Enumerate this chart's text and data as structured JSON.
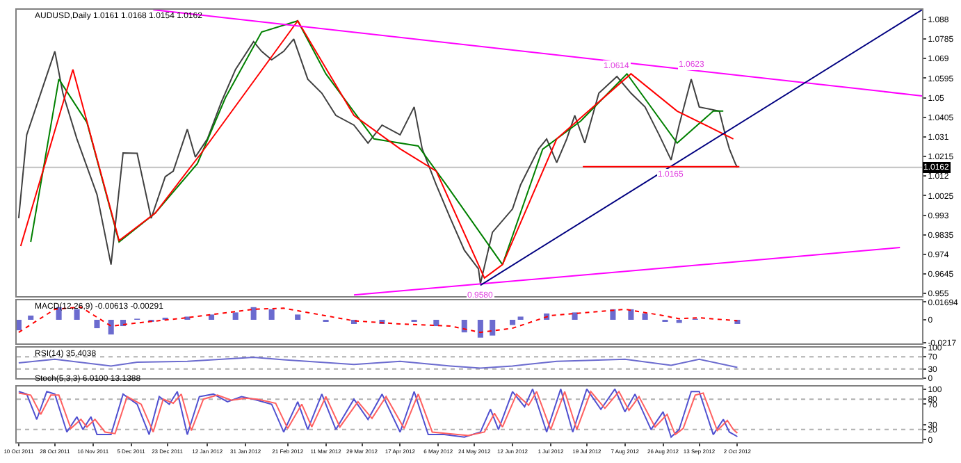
{
  "chart_data": [
    {
      "type": "line",
      "title": "AUDUSD,Daily 1.0161 1.0168 1.0154 1.0162",
      "tick_labels": "y",
      "xlim": [
        "2011-10-09",
        "2013-01-02"
      ],
      "ylim": [
        0.9537,
        1.0927
      ],
      "yticks": [
        0.955,
        0.9645,
        0.974,
        0.9835,
        0.993,
        1.0025,
        1.012,
        1.0215,
        1.031,
        1.0405,
        1.05,
        1.0595,
        1.069,
        1.0785,
        1.088
      ],
      "series": [
        {
          "color": "#404040",
          "x": [
            "2011-10-10",
            "2011-10-14",
            "2011-10-28",
            "2011-11-01",
            "2011-11-08",
            "2011-11-18",
            "2011-11-25",
            "2011-12-01",
            "2011-12-08",
            "2011-12-15",
            "2011-12-22",
            "2011-12-26",
            "2012-01-02",
            "2012-01-06",
            "2012-01-12",
            "2012-01-19",
            "2012-01-26",
            "2012-02-04",
            "2012-02-08",
            "2012-02-13",
            "2012-02-19",
            "2012-02-24",
            "2012-03-02",
            "2012-03-09",
            "2012-03-16",
            "2012-03-25",
            "2012-04-01",
            "2012-04-08",
            "2012-04-17",
            "2012-04-24",
            "2012-04-28",
            "2012-05-05",
            "2012-05-12",
            "2012-05-19",
            "2012-05-26",
            "2012-05-27",
            "2012-06-02",
            "2012-06-12",
            "2012-06-16",
            "2012-06-25",
            "2012-06-29",
            "2012-07-04",
            "2012-07-09",
            "2012-07-13",
            "2012-07-18",
            "2012-07-25",
            "2012-08-03",
            "2012-08-10",
            "2012-08-17",
            "2012-08-24",
            "2012-08-30",
            "2012-09-03",
            "2012-09-09",
            "2012-09-13",
            "2012-09-23",
            "2012-09-26",
            "2012-09-28",
            "2012-10-01",
            "2012-10-02"
          ],
          "values": [
            0.9915,
            1.032,
            1.0725,
            1.0522,
            1.03,
            1.003,
            0.969,
            1.0232,
            1.023,
            0.9915,
            1.0117,
            1.0144,
            1.0347,
            1.0212,
            1.03,
            1.048,
            1.0637,
            1.0772,
            1.0725,
            1.0684,
            1.0725,
            1.0785,
            1.059,
            1.0522,
            1.0414,
            1.0367,
            1.028,
            1.0367,
            1.032,
            1.0455,
            1.0252,
            1.0077,
            0.9915,
            0.976,
            0.967,
            0.9598,
            0.9847,
            0.996,
            1.0077,
            1.0252,
            1.03,
            1.0185,
            1.03,
            1.0414,
            1.028,
            1.0522,
            1.0603,
            1.0522,
            1.0455,
            1.032,
            1.0198,
            1.0367,
            1.059,
            1.0455,
            1.0435,
            1.032,
            1.0252,
            1.018,
            1.0162
          ]
        },
        {
          "color": "#008000",
          "x": [
            "2011-10-16",
            "2011-10-30",
            "2011-11-13",
            "2011-11-29",
            "2011-12-17",
            "2012-01-07",
            "2012-01-21",
            "2012-02-08",
            "2012-02-26",
            "2012-03-11",
            "2012-04-04",
            "2012-04-26",
            "2012-05-10",
            "2012-06-07",
            "2012-06-27",
            "2012-07-16",
            "2012-08-08",
            "2012-09-02",
            "2012-09-20",
            "2012-09-25"
          ],
          "values": [
            0.98,
            1.059,
            1.038,
            0.98,
            0.994,
            1.018,
            1.05,
            1.0819,
            1.0873,
            1.0616,
            1.03,
            1.0266,
            1.0077,
            0.969,
            1.025,
            1.0387,
            1.0616,
            1.028,
            1.0435,
            1.0435
          ]
        },
        {
          "color": "#ff0000",
          "x": [
            "2011-10-11",
            "2011-11-06",
            "2011-11-29",
            "2011-12-17",
            "2012-01-09",
            "2012-02-26",
            "2012-03-25",
            "2012-04-17",
            "2012-05-05",
            "2012-05-29",
            "2012-06-07",
            "2012-07-04",
            "2012-08-10",
            "2012-09-02",
            "2012-09-30"
          ],
          "values": [
            0.978,
            1.0637,
            0.9807,
            0.994,
            1.0232,
            1.0873,
            1.0414,
            1.0252,
            1.0144,
            0.9625,
            0.969,
            1.03,
            1.0616,
            1.0435,
            1.03
          ]
        },
        {
          "color": "#ff00ff",
          "x": [
            "2011-12-16",
            "2013-01-02"
          ],
          "values": [
            1.0927,
            1.0509
          ]
        },
        {
          "color": "#ff00ff",
          "x": [
            "2012-03-25",
            "2012-12-22"
          ],
          "values": [
            0.9543,
            0.9773
          ]
        },
        {
          "color": "#000080",
          "x": [
            "2012-05-27",
            "2013-01-02"
          ],
          "values": [
            0.959,
            1.0927
          ]
        },
        {
          "color": "#ff0000",
          "x": [
            "2012-07-17",
            "2012-10-03"
          ],
          "values": [
            1.0165,
            1.0165
          ]
        }
      ],
      "ref_lines": [
        {
          "axis": "y",
          "value": 1.0162,
          "label": "1.0162",
          "color": "#c0c0c0"
        }
      ],
      "annotations": [
        {
          "text": "1.0614",
          "x": "2012-08-03",
          "y": 1.0614
        },
        {
          "text": "1.0623",
          "x": "2012-09-09",
          "y": 1.0623
        },
        {
          "text": "1.0165",
          "x": "2012-08-30",
          "y": 1.0165
        },
        {
          "text": "0.9580",
          "x": "2012-05-27",
          "y": 0.958
        }
      ]
    },
    {
      "type": "bar",
      "title": "MACD(12,26,9) -0.00613 -0.00291",
      "tick_labels": "y",
      "xlim": [
        "2011-10-09",
        "2013-01-02"
      ],
      "ylim": [
        -0.0225,
        0.0185
      ],
      "yticks": [
        -0.0217,
        0,
        0.01694
      ],
      "series": [
        {
          "color": "#6b6bcf",
          "x": [
            "2011-10-10",
            "2011-10-16",
            "2011-10-30",
            "2011-11-08",
            "2011-11-18",
            "2011-11-25",
            "2011-12-01",
            "2011-12-08",
            "2011-12-15",
            "2011-12-22",
            "2012-01-02",
            "2012-01-14",
            "2012-01-26",
            "2012-02-04",
            "2012-02-13",
            "2012-02-26",
            "2012-03-11",
            "2012-03-25",
            "2012-04-08",
            "2012-04-24",
            "2012-05-05",
            "2012-05-19",
            "2012-05-27",
            "2012-06-02",
            "2012-06-12",
            "2012-06-16",
            "2012-06-29",
            "2012-07-13",
            "2012-08-01",
            "2012-08-10",
            "2012-08-17",
            "2012-08-27",
            "2012-09-03",
            "2012-09-11",
            "2012-09-23",
            "2012-10-02"
          ],
          "values": [
            -0.01,
            0.004,
            0.012,
            0.01,
            -0.008,
            -0.014,
            -0.006,
            0.001,
            -0.002,
            0.002,
            0.003,
            0.005,
            0.007,
            0.012,
            0.01,
            0.005,
            -0.002,
            -0.004,
            -0.004,
            -0.002,
            -0.006,
            -0.012,
            -0.017,
            -0.015,
            -0.005,
            0.003,
            0.006,
            0.007,
            0.01,
            0.01,
            0.006,
            -0.002,
            -0.003,
            0.001,
            0,
            -0.004
          ]
        },
        {
          "type": "line",
          "line_style": "dotted",
          "color": "#ff0000",
          "x": [
            "2011-10-10",
            "2011-10-28",
            "2011-11-10",
            "2011-11-25",
            "2011-12-08",
            "2012-01-02",
            "2012-02-04",
            "2012-02-19",
            "2012-03-25",
            "2012-04-17",
            "2012-05-12",
            "2012-05-27",
            "2012-06-12",
            "2012-07-01",
            "2012-08-07",
            "2012-08-26",
            "2012-09-03",
            "2012-09-13",
            "2012-10-02"
          ],
          "values": [
            -0.012,
            0.01,
            0.012,
            -0.006,
            -0.003,
            0.002,
            0.01,
            0.011,
            -0.001,
            -0.004,
            -0.006,
            -0.012,
            -0.008,
            0.004,
            0.01,
            0.004,
            0.001,
            0.002,
            -0.001
          ]
        }
      ]
    },
    {
      "type": "line",
      "title": "RSI(14) 35.4038",
      "tick_labels": "y",
      "xlim": [
        "2011-10-09",
        "2013-01-02"
      ],
      "ylim": [
        0,
        100
      ],
      "yticks": [
        0,
        30,
        70,
        100
      ],
      "ref_lines": [
        {
          "axis": "y",
          "value": 70,
          "color": "#b0b0b0",
          "line_style": "dotted"
        },
        {
          "axis": "y",
          "value": 30,
          "color": "#b0b0b0",
          "line_style": "dotted"
        }
      ],
      "series": [
        {
          "color": "#6b6bcf",
          "x": [
            "2011-10-10",
            "2011-10-28",
            "2011-11-25",
            "2011-12-08",
            "2012-01-02",
            "2012-02-04",
            "2012-02-19",
            "2012-03-25",
            "2012-04-17",
            "2012-05-12",
            "2012-05-27",
            "2012-06-12",
            "2012-07-04",
            "2012-07-19",
            "2012-08-07",
            "2012-08-30",
            "2012-09-13",
            "2012-10-02"
          ],
          "values": [
            50,
            62,
            40,
            52,
            55,
            68,
            60,
            45,
            55,
            40,
            33,
            40,
            55,
            58,
            62,
            42,
            62,
            35
          ]
        }
      ]
    },
    {
      "type": "line",
      "title": "Stoch(5,3,3) 6.0100 13.1388",
      "xlim": [
        "2011-10-09",
        "2013-01-02"
      ],
      "ylim": [
        -5,
        105
      ],
      "yticks": [
        0,
        20,
        30,
        70,
        80,
        100
      ],
      "xticks": [
        {
          "value": "2011-10-10",
          "label": "10 Oct 2011"
        },
        {
          "value": "2011-10-28",
          "label": "28 Oct 2011"
        },
        {
          "value": "2011-11-16",
          "label": "16 Nov 2011"
        },
        {
          "value": "2011-12-05",
          "label": "5 Dec 2011"
        },
        {
          "value": "2011-12-23",
          "label": "23 Dec 2011"
        },
        {
          "value": "2012-01-12",
          "label": "12 Jan 2012"
        },
        {
          "value": "2012-01-31",
          "label": "31 Jan 2012"
        },
        {
          "value": "2012-02-21",
          "label": "21 Feb 2012"
        },
        {
          "value": "2012-03-11",
          "label": "11 Mar 2012"
        },
        {
          "value": "2012-03-29",
          "label": "29 Mar 2012"
        },
        {
          "value": "2012-04-17",
          "label": "17 Apr 2012"
        },
        {
          "value": "2012-05-06",
          "label": "6 May 2012"
        },
        {
          "value": "2012-05-24",
          "label": "24 May 2012"
        },
        {
          "value": "2012-06-12",
          "label": "12 Jun 2012"
        },
        {
          "value": "2012-07-01",
          "label": "1 Jul 2012"
        },
        {
          "value": "2012-07-19",
          "label": "19 Jul 2012"
        },
        {
          "value": "2012-08-07",
          "label": "7 Aug 2012"
        },
        {
          "value": "2012-08-26",
          "label": "26 Aug 2012"
        },
        {
          "value": "2012-09-13",
          "label": "13 Sep 2012"
        },
        {
          "value": "2012-10-02",
          "label": "2 Oct 2012"
        }
      ],
      "ref_lines": [
        {
          "axis": "y",
          "value": 80,
          "color": "#b0b0b0",
          "line_style": "dotted"
        },
        {
          "axis": "y",
          "value": 20,
          "color": "#b0b0b0",
          "line_style": "dotted"
        }
      ],
      "series": [
        {
          "color": "#5050d0",
          "x": [
            "2011-10-10",
            "2011-10-14",
            "2011-10-19",
            "2011-10-24",
            "2011-10-28",
            "2011-11-03",
            "2011-11-08",
            "2011-11-11",
            "2011-11-15",
            "2011-11-18",
            "2011-11-25",
            "2011-12-01",
            "2011-12-08",
            "2011-12-14",
            "2011-12-19",
            "2011-12-24",
            "2011-12-28",
            "2012-01-02",
            "2012-01-08",
            "2012-01-15",
            "2012-01-22",
            "2012-01-29",
            "2012-02-04",
            "2012-02-13",
            "2012-02-19",
            "2012-02-26",
            "2012-03-02",
            "2012-03-09",
            "2012-03-16",
            "2012-03-25",
            "2012-04-01",
            "2012-04-08",
            "2012-04-17",
            "2012-04-24",
            "2012-05-01",
            "2012-05-09",
            "2012-05-19",
            "2012-05-27",
            "2012-06-01",
            "2012-06-05",
            "2012-06-12",
            "2012-06-18",
            "2012-06-22",
            "2012-06-29",
            "2012-07-06",
            "2012-07-12",
            "2012-07-19",
            "2012-07-26",
            "2012-08-02",
            "2012-08-07",
            "2012-08-12",
            "2012-08-20",
            "2012-08-26",
            "2012-08-30",
            "2012-09-03",
            "2012-09-09",
            "2012-09-13",
            "2012-09-20",
            "2012-09-25",
            "2012-09-28",
            "2012-10-02"
          ],
          "values": [
            95,
            90,
            40,
            95,
            90,
            15,
            45,
            20,
            45,
            10,
            10,
            90,
            70,
            10,
            85,
            70,
            95,
            10,
            85,
            90,
            75,
            85,
            80,
            70,
            15,
            75,
            20,
            90,
            20,
            80,
            40,
            90,
            15,
            95,
            10,
            10,
            5,
            15,
            60,
            20,
            95,
            65,
            100,
            15,
            100,
            15,
            100,
            60,
            100,
            55,
            90,
            20,
            55,
            5,
            20,
            95,
            95,
            10,
            40,
            15,
            6
          ]
        },
        {
          "color": "#ff6060",
          "x": [
            "2011-10-10",
            "2011-10-16",
            "2011-10-21",
            "2011-10-26",
            "2011-10-30",
            "2011-11-05",
            "2011-11-10",
            "2011-11-13",
            "2011-11-17",
            "2011-11-22",
            "2011-11-27",
            "2011-12-03",
            "2011-12-10",
            "2011-12-16",
            "2011-12-21",
            "2011-12-26",
            "2011-12-30",
            "2012-01-04",
            "2012-01-10",
            "2012-01-17",
            "2012-01-24",
            "2012-01-31",
            "2012-02-06",
            "2012-02-15",
            "2012-02-21",
            "2012-02-28",
            "2012-03-04",
            "2012-03-11",
            "2012-03-18",
            "2012-03-27",
            "2012-04-03",
            "2012-04-10",
            "2012-04-19",
            "2012-04-26",
            "2012-05-03",
            "2012-05-11",
            "2012-05-21",
            "2012-05-29",
            "2012-06-03",
            "2012-06-07",
            "2012-06-14",
            "2012-06-20",
            "2012-06-24",
            "2012-07-01",
            "2012-07-08",
            "2012-07-14",
            "2012-07-21",
            "2012-07-28",
            "2012-08-04",
            "2012-08-09",
            "2012-08-14",
            "2012-08-22",
            "2012-08-28",
            "2012-09-01",
            "2012-09-05",
            "2012-09-11",
            "2012-09-15",
            "2012-09-22",
            "2012-09-27",
            "2012-09-30",
            "2012-10-02"
          ],
          "values": [
            92,
            88,
            50,
            88,
            88,
            22,
            40,
            25,
            40,
            15,
            12,
            85,
            70,
            15,
            80,
            72,
            90,
            18,
            80,
            88,
            78,
            82,
            80,
            72,
            22,
            70,
            25,
            85,
            25,
            75,
            42,
            85,
            22,
            90,
            15,
            12,
            8,
            15,
            52,
            25,
            90,
            68,
            95,
            20,
            95,
            20,
            95,
            62,
            95,
            58,
            85,
            25,
            50,
            10,
            22,
            88,
            92,
            18,
            38,
            20,
            13
          ]
        }
      ]
    }
  ]
}
